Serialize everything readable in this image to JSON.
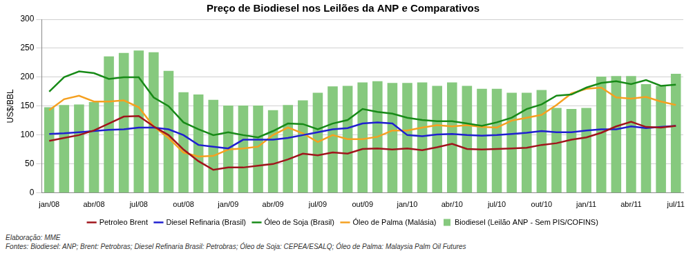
{
  "chart_data": {
    "type": "bar",
    "title": "Preço de Biodiesel nos Leilões da ANP e Comparativos",
    "y_label": "US$/BBL",
    "notes": [
      "Elaboração: MME",
      "Fontes: Biodiesel: ANP; Brent: Petrobras; Diesel Refinaria Brasil: Petrobras; Óleo de Soja: CEPEA/ESALQ; Óleo de Palma: Malaysia Palm Oil Futures"
    ],
    "categories": [
      "jan/08",
      null,
      null,
      "abr/08",
      null,
      null,
      "jul/08",
      null,
      null,
      "out/08",
      null,
      null,
      "jan/09",
      null,
      null,
      "abr/09",
      null,
      null,
      "jul/09",
      null,
      null,
      "out/09",
      null,
      null,
      "jan/10",
      null,
      null,
      "abr/10",
      null,
      null,
      "jul/10",
      null,
      null,
      "out/10",
      null,
      null,
      "jan/11",
      null,
      null,
      "abr/11",
      null,
      null,
      "jul/11"
    ],
    "series": [
      {
        "name": "Biodiesel (Leilão ANP - Sem PIS/COFINS)",
        "type": "bar",
        "color": "#86c97e",
        "values": [
          148,
          152,
          153,
          157,
          236,
          242,
          246,
          243,
          211,
          174,
          170,
          161,
          151,
          151,
          151,
          143,
          152,
          160,
          173,
          184,
          185,
          191,
          193,
          190,
          190,
          191,
          185,
          191,
          185,
          180,
          180,
          173,
          173,
          178,
          147,
          145,
          147,
          201,
          202,
          202,
          188,
          185,
          206
        ]
      },
      {
        "name": "Petroleo Brent",
        "type": "line",
        "color": "#a0141b",
        "values": [
          90,
          95,
          100,
          108,
          120,
          132,
          133,
          115,
          100,
          75,
          55,
          40,
          44,
          44,
          47,
          50,
          58,
          68,
          65,
          70,
          68,
          76,
          77,
          75,
          77,
          74,
          79,
          85,
          76,
          75,
          76,
          77,
          78,
          83,
          86,
          92,
          96,
          104,
          115,
          123,
          114,
          113,
          116
        ]
      },
      {
        "name": "Diesel Refinaria (Brasil)",
        "type": "line",
        "color": "#1f1fd0",
        "values": [
          102,
          103,
          105,
          107,
          109,
          110,
          113,
          113,
          110,
          100,
          83,
          80,
          77,
          92,
          92,
          92,
          95,
          100,
          105,
          110,
          112,
          120,
          122,
          120,
          100,
          98,
          101,
          102,
          100,
          99,
          100,
          102,
          104,
          107,
          105,
          105,
          108,
          110,
          110,
          115,
          112,
          114,
          116
        ]
      },
      {
        "name": "Óleo de Soja (Brasil)",
        "type": "line",
        "color": "#178a17",
        "values": [
          175,
          200,
          210,
          207,
          197,
          200,
          200,
          165,
          150,
          122,
          110,
          100,
          105,
          100,
          96,
          107,
          120,
          119,
          110,
          120,
          126,
          145,
          140,
          137,
          130,
          126,
          124,
          124,
          120,
          116,
          122,
          130,
          145,
          153,
          168,
          170,
          182,
          190,
          193,
          188,
          195,
          185,
          187
        ]
      },
      {
        "name": "Óleo de Palma (Malásia)",
        "type": "line",
        "color": "#f5a020",
        "values": [
          143,
          162,
          168,
          158,
          158,
          160,
          148,
          115,
          95,
          70,
          63,
          64,
          75,
          77,
          80,
          100,
          113,
          103,
          88,
          100,
          93,
          93,
          97,
          108,
          108,
          113,
          117,
          115,
          117,
          114,
          113,
          125,
          130,
          135,
          152,
          172,
          180,
          182,
          165,
          163,
          166,
          158,
          152
        ]
      }
    ],
    "ylim": [
      0,
      300
    ],
    "yticks": [
      0,
      50,
      100,
      150,
      200,
      250,
      300
    ],
    "grid": true,
    "legend": "bottom"
  }
}
